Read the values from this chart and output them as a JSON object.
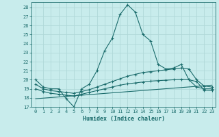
{
  "xlabel": "Humidex (Indice chaleur)",
  "background_color": "#c8ecec",
  "grid_color": "#b0d8d8",
  "line_color": "#1a6b6b",
  "xlim": [
    -0.5,
    23.5
  ],
  "ylim": [
    17,
    28.6
  ],
  "yticks": [
    17,
    18,
    19,
    20,
    21,
    22,
    23,
    24,
    25,
    26,
    27,
    28
  ],
  "xticks": [
    0,
    1,
    2,
    3,
    4,
    5,
    6,
    7,
    8,
    9,
    10,
    11,
    12,
    13,
    14,
    15,
    16,
    17,
    18,
    19,
    20,
    21,
    22,
    23
  ],
  "line1_x": [
    0,
    1,
    2,
    3,
    4,
    5,
    6,
    7,
    8,
    9,
    10,
    11,
    12,
    13,
    14,
    15,
    16,
    17,
    18,
    19,
    20,
    21,
    22,
    23
  ],
  "line1_y": [
    20.0,
    19.2,
    19.0,
    19.0,
    17.9,
    17.0,
    19.0,
    19.5,
    21.0,
    23.2,
    24.6,
    27.2,
    28.3,
    27.5,
    25.0,
    24.3,
    21.7,
    21.2,
    21.3,
    21.7,
    20.0,
    19.2,
    19.0,
    19.0
  ],
  "line2_x": [
    0,
    1,
    2,
    3,
    4,
    5,
    6,
    7,
    8,
    9,
    10,
    11,
    12,
    13,
    14,
    15,
    16,
    17,
    18,
    19,
    20,
    21,
    22,
    23
  ],
  "line2_y": [
    19.5,
    19.0,
    18.8,
    18.7,
    18.6,
    18.5,
    18.7,
    18.9,
    19.2,
    19.5,
    19.8,
    20.1,
    20.4,
    20.6,
    20.8,
    20.9,
    21.0,
    21.1,
    21.2,
    21.3,
    21.2,
    20.0,
    19.3,
    19.2
  ],
  "line3_x": [
    0,
    1,
    2,
    3,
    4,
    5,
    6,
    7,
    8,
    9,
    10,
    11,
    12,
    13,
    14,
    15,
    16,
    17,
    18,
    19,
    20,
    21,
    22,
    23
  ],
  "line3_y": [
    19.0,
    18.7,
    18.5,
    18.4,
    18.3,
    18.2,
    18.4,
    18.6,
    18.8,
    19.0,
    19.2,
    19.4,
    19.55,
    19.65,
    19.75,
    19.85,
    19.9,
    19.95,
    20.0,
    20.05,
    20.0,
    19.8,
    18.85,
    18.8
  ],
  "line4_x": [
    0,
    23
  ],
  "line4_y": [
    17.9,
    19.4
  ]
}
